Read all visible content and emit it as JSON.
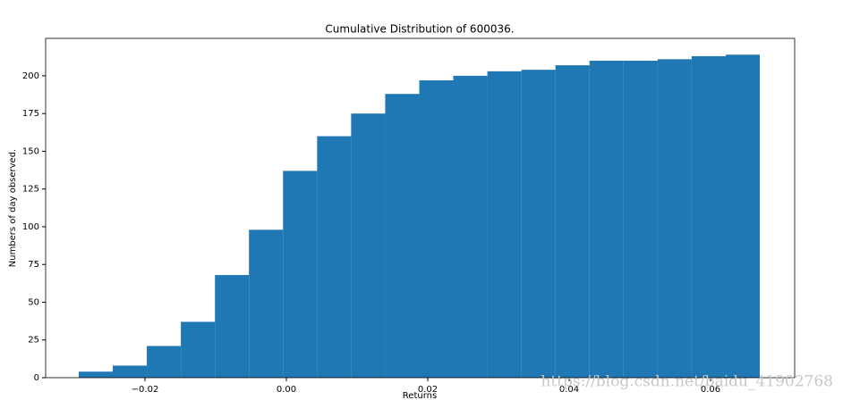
{
  "chart_data": {
    "type": "histogram",
    "title": "Cumulative Distribution of 600036.",
    "xlabel": "Returns",
    "ylabel": "Numbers of day observed.",
    "bins": [
      -0.02937,
      -0.02455,
      -0.01974,
      -0.01492,
      -0.0101,
      -0.00529,
      -0.00047,
      0.00435,
      0.00916,
      0.01398,
      0.0188,
      0.02361,
      0.02843,
      0.03325,
      0.03806,
      0.04288,
      0.0477,
      0.05252,
      0.05733,
      0.06215,
      0.06696
    ],
    "values": [
      4,
      8,
      21,
      37,
      68,
      98,
      137,
      160,
      175,
      188,
      197,
      200,
      203,
      204,
      207,
      210,
      210,
      211,
      213,
      214
    ],
    "color": "#1f77b4",
    "xlim": [
      -0.03405,
      0.0719
    ],
    "ylim": [
      0,
      224.8
    ],
    "xticks": [
      {
        "value": -0.02,
        "label": "−0.02"
      },
      {
        "value": 0,
        "label": "0.00"
      },
      {
        "value": 0.02,
        "label": "0.02"
      },
      {
        "value": 0.04,
        "label": "0.04"
      },
      {
        "value": 0.06,
        "label": "0.06"
      }
    ],
    "yticks": [
      0,
      25,
      50,
      75,
      100,
      125,
      150,
      175,
      200
    ],
    "watermark": "https://blog.csdn.net/baidu_41902768"
  }
}
